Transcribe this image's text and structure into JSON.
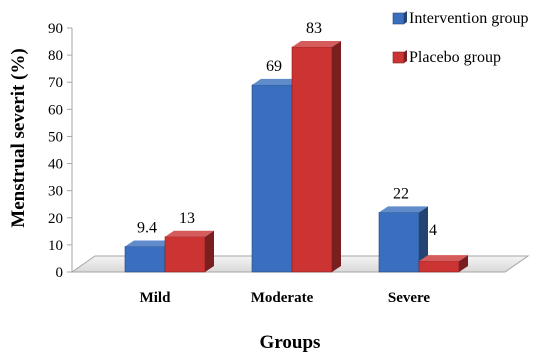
{
  "chart_data": {
    "type": "bar",
    "categories": [
      "Mild",
      "Moderate",
      "Severe"
    ],
    "series": [
      {
        "name": "Intervention group",
        "values": [
          9.4,
          69,
          22
        ],
        "labels": [
          "9.4",
          "69",
          "22"
        ],
        "color": "#3a6fbf"
      },
      {
        "name": "Placebo group",
        "values": [
          13,
          83,
          4
        ],
        "labels": [
          "13",
          "83",
          "4"
        ],
        "color": "#cc3333"
      }
    ],
    "xlabel": "Groups",
    "ylabel": "Menstrual severit (%)",
    "ylim": [
      0,
      90
    ],
    "yticks": [
      0,
      10,
      20,
      30,
      40,
      50,
      60,
      70,
      80,
      90
    ],
    "grid": false,
    "legend_position": "top-right",
    "style": "3d-column"
  }
}
